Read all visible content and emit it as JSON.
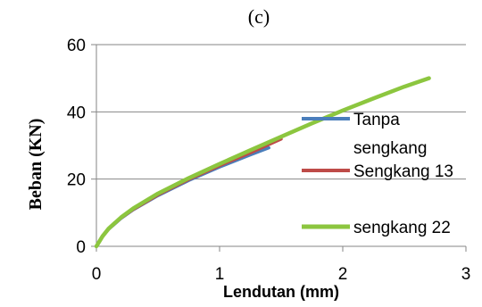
{
  "chart_data": {
    "type": "line",
    "title": "(c)",
    "xlabel": "Lendutan (mm)",
    "ylabel": "Beban (KN)",
    "xlim": [
      0,
      3
    ],
    "ylim": [
      0,
      60
    ],
    "x_ticks": [
      "0",
      "1",
      "2",
      "3"
    ],
    "y_ticks": [
      "0",
      "20",
      "40",
      "60"
    ],
    "grid": "horizontal",
    "legend": "right",
    "series": [
      {
        "name": "Tanpa sengkang",
        "legend_lines": [
          "Tanpa",
          "sengkang"
        ],
        "color": "#4A7EBB",
        "x": [
          0,
          0.05,
          0.1,
          0.2,
          0.3,
          0.5,
          0.75,
          1.0,
          1.25,
          1.4
        ],
        "y": [
          0,
          2.9,
          5.1,
          8.3,
          10.9,
          15.1,
          19.6,
          23.6,
          27.2,
          29.3
        ]
      },
      {
        "name": "Sengkang 13",
        "color": "#BE4B48",
        "x": [
          0,
          0.05,
          0.1,
          0.2,
          0.3,
          0.5,
          0.75,
          1.0,
          1.25,
          1.5
        ],
        "y": [
          0,
          2.9,
          5.2,
          8.4,
          11.0,
          15.3,
          19.9,
          24.0,
          27.8,
          31.9
        ]
      },
      {
        "name": "sengkang 22",
        "color": "#8CC63F",
        "x": [
          0,
          0.05,
          0.1,
          0.2,
          0.3,
          0.5,
          0.75,
          1.0,
          1.25,
          1.5,
          1.75,
          2.0,
          2.25,
          2.5,
          2.7
        ],
        "y": [
          0,
          3.0,
          5.3,
          8.6,
          11.3,
          15.7,
          20.3,
          24.5,
          28.6,
          32.6,
          36.6,
          40.4,
          44.0,
          47.5,
          50.0
        ]
      }
    ]
  }
}
